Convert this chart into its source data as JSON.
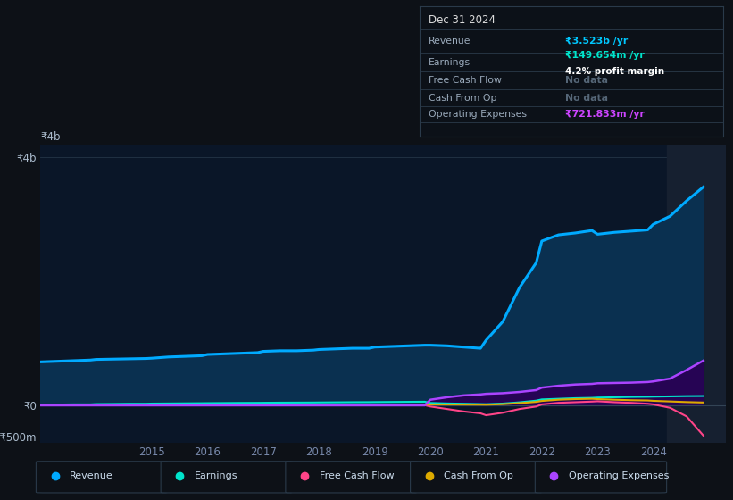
{
  "bg_color": "#0d1117",
  "chart_bg_color": "#0a1628",
  "grid_color": "#243447",
  "revenue_color": "#00aaff",
  "revenue_fill_color": "#0a3050",
  "earnings_color": "#00e5cc",
  "fcf_color": "#ff4488",
  "cashop_color": "#ddaa00",
  "opex_color": "#aa44ff",
  "opex_fill_color": "#2a0055",
  "highlight_color": "#162030",
  "ylim": [
    -600,
    4200
  ],
  "ytick_labels": [
    "₹4b",
    "₹0",
    "-₹500m"
  ],
  "ytick_values": [
    4000,
    0,
    -500
  ],
  "xlabel_color": "#7788aa",
  "ylabel_label_color": "#aabbcc",
  "years": [
    2013.0,
    2013.3,
    2013.6,
    2013.9,
    2014.0,
    2014.3,
    2014.6,
    2014.9,
    2015.0,
    2015.3,
    2015.6,
    2015.9,
    2016.0,
    2016.3,
    2016.6,
    2016.9,
    2017.0,
    2017.3,
    2017.6,
    2017.9,
    2018.0,
    2018.3,
    2018.6,
    2018.9,
    2019.0,
    2019.3,
    2019.6,
    2019.9,
    2020.0,
    2020.3,
    2020.6,
    2020.9,
    2021.0,
    2021.3,
    2021.6,
    2021.9,
    2022.0,
    2022.3,
    2022.6,
    2022.9,
    2023.0,
    2023.3,
    2023.6,
    2023.9,
    2024.0,
    2024.3,
    2024.6,
    2024.9
  ],
  "revenue": [
    700,
    710,
    720,
    730,
    740,
    745,
    750,
    755,
    760,
    780,
    790,
    800,
    820,
    830,
    840,
    850,
    870,
    880,
    880,
    890,
    900,
    910,
    920,
    920,
    940,
    950,
    960,
    970,
    970,
    960,
    940,
    920,
    1050,
    1350,
    1900,
    2300,
    2650,
    2750,
    2780,
    2820,
    2760,
    2790,
    2810,
    2830,
    2920,
    3050,
    3300,
    3523
  ],
  "earnings": [
    10,
    12,
    15,
    15,
    20,
    22,
    25,
    25,
    28,
    30,
    32,
    34,
    35,
    37,
    39,
    40,
    41,
    43,
    44,
    45,
    46,
    48,
    50,
    51,
    52,
    54,
    56,
    58,
    38,
    30,
    25,
    20,
    18,
    28,
    48,
    75,
    95,
    105,
    115,
    120,
    125,
    130,
    135,
    138,
    140,
    144,
    148,
    149.654
  ],
  "fcf": [
    3,
    3,
    3,
    3,
    3,
    3,
    3,
    3,
    3,
    3,
    3,
    3,
    3,
    3,
    3,
    3,
    3,
    3,
    3,
    3,
    3,
    3,
    3,
    3,
    3,
    3,
    3,
    3,
    -20,
    -60,
    -100,
    -130,
    -160,
    -120,
    -60,
    -20,
    15,
    40,
    50,
    60,
    65,
    50,
    40,
    25,
    15,
    -40,
    -180,
    -490
  ],
  "cashop": [
    3,
    3,
    4,
    4,
    4,
    4,
    5,
    5,
    5,
    6,
    6,
    6,
    7,
    7,
    8,
    8,
    8,
    9,
    9,
    10,
    10,
    11,
    11,
    12,
    12,
    13,
    13,
    14,
    14,
    13,
    12,
    11,
    10,
    18,
    35,
    55,
    70,
    90,
    100,
    105,
    100,
    90,
    82,
    78,
    72,
    62,
    52,
    45
  ],
  "opex": [
    0,
    0,
    0,
    0,
    0,
    0,
    0,
    0,
    0,
    0,
    0,
    0,
    0,
    0,
    0,
    0,
    0,
    0,
    0,
    0,
    0,
    0,
    0,
    0,
    0,
    0,
    0,
    0,
    90,
    130,
    160,
    175,
    185,
    195,
    215,
    245,
    285,
    315,
    335,
    345,
    355,
    360,
    365,
    375,
    385,
    430,
    570,
    721.833
  ],
  "legend_items": [
    {
      "label": "Revenue",
      "color": "#00aaff"
    },
    {
      "label": "Earnings",
      "color": "#00e5cc"
    },
    {
      "label": "Free Cash Flow",
      "color": "#ff4488"
    },
    {
      "label": "Cash From Op",
      "color": "#ddaa00"
    },
    {
      "label": "Operating Expenses",
      "color": "#aa44ff"
    }
  ],
  "xtick_positions": [
    2015,
    2016,
    2017,
    2018,
    2019,
    2020,
    2021,
    2022,
    2023,
    2024
  ],
  "xtick_labels": [
    "2015",
    "2016",
    "2017",
    "2018",
    "2019",
    "2020",
    "2021",
    "2022",
    "2023",
    "2024"
  ],
  "panel_rows": [
    {
      "label": "Revenue",
      "value": "₹3.523b /yr",
      "val_color": "#00c8ff",
      "sub": null,
      "sub_color": null
    },
    {
      "label": "Earnings",
      "value": "₹149.654m /yr",
      "val_color": "#00e5cc",
      "sub": "4.2% profit margin",
      "sub_color": "#ffffff"
    },
    {
      "label": "Free Cash Flow",
      "value": "No data",
      "val_color": "#556677",
      "sub": null,
      "sub_color": null
    },
    {
      "label": "Cash From Op",
      "value": "No data",
      "val_color": "#556677",
      "sub": null,
      "sub_color": null
    },
    {
      "label": "Operating Expenses",
      "value": "₹721.833m /yr",
      "val_color": "#cc44ff",
      "sub": null,
      "sub_color": null
    }
  ]
}
